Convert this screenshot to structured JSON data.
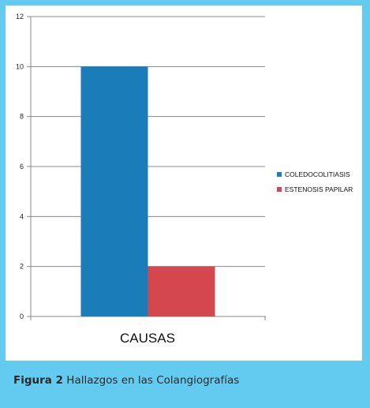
{
  "chart_data": {
    "type": "bar",
    "categories": [
      "CAUSAS"
    ],
    "series": [
      {
        "name": "COLEDOCOLITIASIS",
        "values": [
          10
        ],
        "color": "#1a7db9"
      },
      {
        "name": "ESTENOSIS PAPILAR",
        "values": [
          2
        ],
        "color": "#d4474f"
      }
    ],
    "xlabel": "CAUSAS",
    "ylabel": "",
    "ylim": [
      0,
      12
    ],
    "yticks": [
      0,
      2,
      4,
      6,
      8,
      10,
      12
    ],
    "grid": true,
    "legend_position": "right"
  },
  "caption": {
    "label": "Figura 2",
    "text": "Hallazgos en las Colangiografías"
  }
}
